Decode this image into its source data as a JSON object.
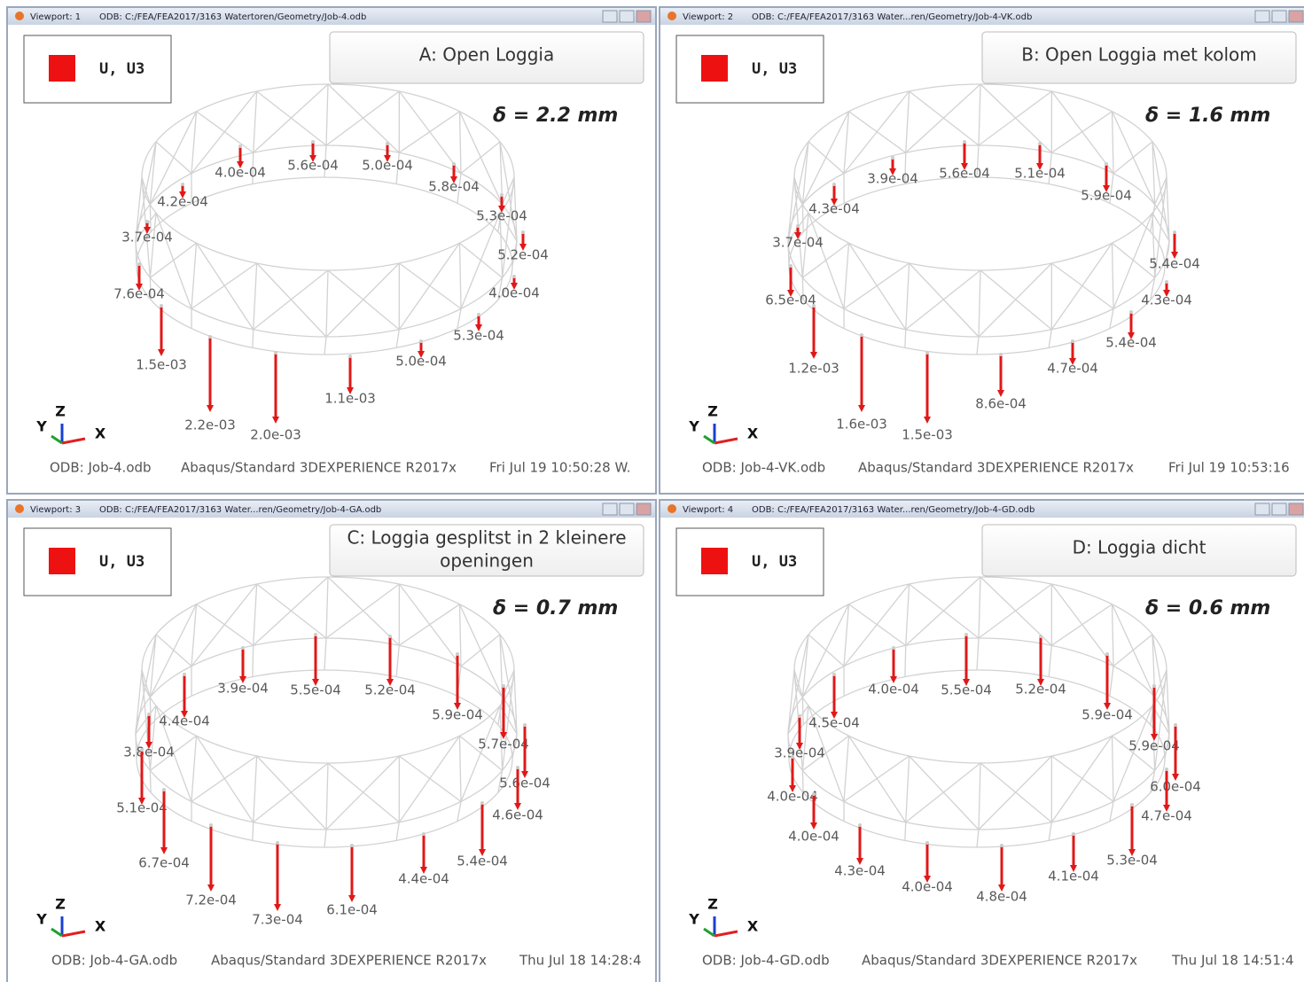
{
  "viewports": [
    {
      "titlebar": {
        "viewport": "Viewport: 1",
        "odb": "ODB: C:/FEA/FEA2017/3163 Watertoren/Geometry/Job-4.odb"
      },
      "legend": "U, U3",
      "title_lines": [
        "A:  Open Loggia"
      ],
      "delta": "δ = 2.2 mm",
      "labels": [
        "4.0e-04",
        "5.6e-04",
        "5.0e-04",
        "5.8e-04",
        "4.2e-04",
        "5.3e-04",
        "3.7e-04",
        "5.2e-04",
        "7.6e-04",
        "4.0e-04",
        "1.5e-03",
        "5.3e-04",
        "5.0e-04",
        "2.2e-03",
        "2.0e-03",
        "1.1e-03"
      ],
      "triad": {
        "y": "Y",
        "z": "Z",
        "x": "X"
      },
      "footer": {
        "odb": "ODB: Job-4.odb",
        "solver": "Abaqus/Standard 3DEXPERIENCE R2017x",
        "date": "Fri Jul 19 10:50:28 W."
      }
    },
    {
      "titlebar": {
        "viewport": "Viewport: 2",
        "odb": "ODB: C:/FEA/FEA2017/3163 Water...ren/Geometry/Job-4-VK.odb"
      },
      "legend": "U, U3",
      "title_lines": [
        "B:  Open Loggia met kolom"
      ],
      "delta": "δ = 1.6 mm",
      "labels": [
        "3.9e-04",
        "5.6e-04",
        "5.1e-04",
        "5.9e-04",
        "4.3e-04",
        "3.7e-04",
        "5.4e-04",
        "6.5e-04",
        "4.3e-04",
        "1.2e-03",
        "5.4e-04",
        "4.7e-04",
        "1.6e-03",
        "1.5e-03",
        "8.6e-04"
      ],
      "triad": {
        "y": "Y",
        "z": "Z",
        "x": "X"
      },
      "footer": {
        "odb": "ODB: Job-4-VK.odb",
        "solver": "Abaqus/Standard 3DEXPERIENCE R2017x",
        "date": "Fri Jul 19 10:53:16"
      }
    },
    {
      "titlebar": {
        "viewport": "Viewport: 3",
        "odb": "ODB: C:/FEA/FEA2017/3163 Water...ren/Geometry/Job-4-GA.odb"
      },
      "legend": "U, U3",
      "title_lines": [
        "C:  Loggia gesplitst in 2 kleinere",
        "openingen"
      ],
      "delta": "δ = 0.7 mm",
      "labels": [
        "3.9e-04",
        "5.5e-04",
        "5.2e-04",
        "5.9e-04",
        "4.4e-04",
        "5.7e-04",
        "3.8e-04",
        "5.6e-04",
        "5.1e-04",
        "4.6e-04",
        "6.7e-04",
        "5.4e-04",
        "4.4e-04",
        "7.2e-04",
        "7.3e-04",
        "6.1e-04"
      ],
      "triad": {
        "y": "Y",
        "z": "Z",
        "x": "X"
      },
      "footer": {
        "odb": "ODB: Job-4-GA.odb",
        "solver": "Abaqus/Standard 3DEXPERIENCE R2017x",
        "date": "Thu Jul 18 14:28:4"
      }
    },
    {
      "titlebar": {
        "viewport": "Viewport: 4",
        "odb": "ODB: C:/FEA/FEA2017/3163 Water...ren/Geometry/Job-4-GD.odb"
      },
      "legend": "U, U3",
      "title_lines": [
        "D:  Loggia dicht"
      ],
      "delta": "δ = 0.6 mm",
      "labels": [
        "4.0e-04",
        "5.5e-04",
        "5.2e-04",
        "5.9e-04",
        "4.5e-04",
        "3.9e-04",
        "5.9e-04",
        "4.0e-04",
        "6.0e-04",
        "4.7e-04",
        "4.0e-04",
        "5.3e-04",
        "4.1e-04",
        "4.3e-04",
        "4.0e-04",
        "4.8e-04"
      ],
      "triad": {
        "y": "Y",
        "z": "Z",
        "x": "X"
      },
      "footer": {
        "odb": "ODB: Job-4-GD.odb",
        "solver": "Abaqus/Standard 3DEXPERIENCE R2017x",
        "date": "Thu Jul 18 14:51:4"
      }
    }
  ]
}
